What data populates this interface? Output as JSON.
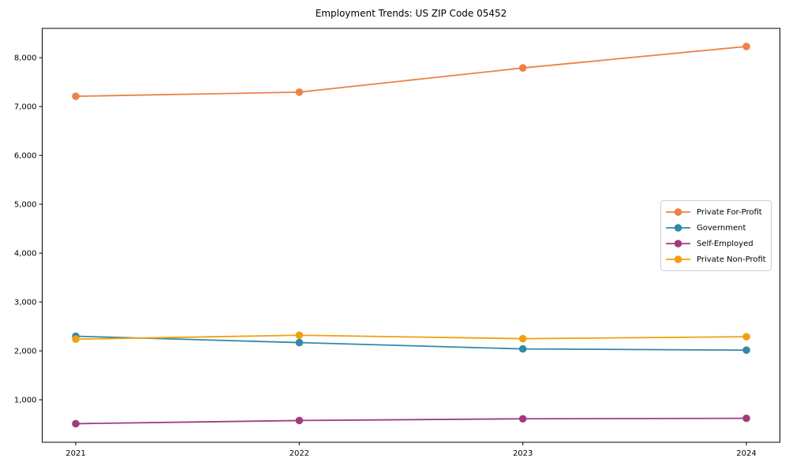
{
  "chart_data": {
    "type": "line",
    "title": "Employment Trends: US ZIP Code 05452",
    "x": [
      "2021",
      "2022",
      "2023",
      "2024"
    ],
    "xlabel": "",
    "ylabel": "",
    "yticks": [
      1000,
      2000,
      3000,
      4000,
      5000,
      6000,
      7000,
      8000
    ],
    "ytick_labels": [
      "1,000",
      "2,000",
      "3,000",
      "4,000",
      "5,000",
      "6,000",
      "7,000",
      "8,000"
    ],
    "ylim": [
      130,
      8600
    ],
    "x_pad": 0.15,
    "grid": false,
    "legend_position": "center right",
    "series": [
      {
        "name": "Private For-Profit",
        "color": "#EC8246",
        "values": [
          7210,
          7295,
          7790,
          8230
        ]
      },
      {
        "name": "Government",
        "color": "#3289A8",
        "values": [
          2300,
          2170,
          2040,
          2015
        ]
      },
      {
        "name": "Self-Employed",
        "color": "#A03C7D",
        "values": [
          510,
          575,
          610,
          620
        ]
      },
      {
        "name": "Private Non-Profit",
        "color": "#F0A00F",
        "values": [
          2240,
          2320,
          2250,
          2290
        ]
      }
    ]
  },
  "colors": {
    "spine": "#000000",
    "text": "#000000",
    "legend_border": "#cccccc",
    "background": "#ffffff"
  }
}
